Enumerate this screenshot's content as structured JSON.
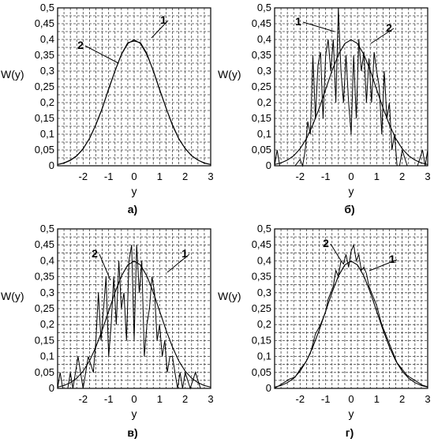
{
  "chart_data": [
    {
      "type": "line",
      "caption": "а)",
      "xlabel": "y",
      "ylabel": "W(y)",
      "xlim": [
        -3,
        3
      ],
      "ylim": [
        0,
        0.5
      ],
      "xticks": [
        "-2",
        "-1",
        "0",
        "1",
        "2",
        "3"
      ],
      "yticks": [
        "0",
        "0,05",
        "0,1",
        "0,15",
        "0,2",
        "0,25",
        "0,3",
        "0,35",
        "0,4",
        "0,45",
        "0,5"
      ],
      "grid": true,
      "annotations": [
        "1",
        "2"
      ],
      "series": [
        {
          "x": [
            -3,
            -2.75,
            -2.5,
            -2.25,
            -2,
            -1.75,
            -1.5,
            -1.25,
            -1,
            -0.75,
            -0.5,
            -0.25,
            0,
            0.25,
            0.5,
            0.75,
            1,
            1.25,
            1.5,
            1.75,
            2,
            2.25,
            2.5,
            2.75,
            3
          ],
          "y": [
            0.004,
            0.008,
            0.017,
            0.031,
            0.053,
            0.087,
            0.13,
            0.181,
            0.245,
            0.3,
            0.353,
            0.39,
            0.395,
            0.39,
            0.355,
            0.3,
            0.24,
            0.184,
            0.128,
            0.085,
            0.055,
            0.032,
            0.018,
            0.008,
            0.004
          ]
        },
        {
          "x": [
            -3,
            -2.75,
            -2.5,
            -2.25,
            -2,
            -1.75,
            -1.5,
            -1.25,
            -1,
            -0.75,
            -0.5,
            -0.25,
            0,
            0.25,
            0.5,
            0.75,
            1,
            1.25,
            1.5,
            1.75,
            2,
            2.25,
            2.5,
            2.75,
            3
          ],
          "y": [
            0.004,
            0.009,
            0.018,
            0.032,
            0.054,
            0.086,
            0.13,
            0.183,
            0.242,
            0.301,
            0.352,
            0.387,
            0.399,
            0.387,
            0.352,
            0.301,
            0.242,
            0.183,
            0.13,
            0.086,
            0.054,
            0.032,
            0.018,
            0.009,
            0.004
          ]
        }
      ]
    },
    {
      "type": "line",
      "caption": "б)",
      "xlabel": "y",
      "ylabel": "W(y)",
      "xlim": [
        -3,
        3
      ],
      "ylim": [
        0,
        0.5
      ],
      "xticks": [
        "-2",
        "-1",
        "0",
        "1",
        "2",
        "3"
      ],
      "yticks": [
        "0",
        "0,05",
        "0,1",
        "0,15",
        "0,2",
        "0,25",
        "0,3",
        "0,35",
        "0,4",
        "0,45",
        "0,5"
      ],
      "grid": true,
      "annotations": [
        "1",
        "2"
      ],
      "series": [
        {
          "x": [
            -3,
            -2.9,
            -2.8,
            -2.7,
            -2.6,
            -2.4,
            -2.2,
            -2.0,
            -1.9,
            -1.8,
            -1.7,
            -1.6,
            -1.5,
            -1.4,
            -1.3,
            -1.2,
            -1.1,
            -1.0,
            -0.9,
            -0.8,
            -0.7,
            -0.6,
            -0.5,
            -0.4,
            -0.3,
            -0.2,
            -0.1,
            0,
            0.1,
            0.2,
            0.3,
            0.4,
            0.5,
            0.6,
            0.7,
            0.8,
            0.9,
            1.0,
            1.1,
            1.2,
            1.3,
            1.4,
            1.5,
            1.6,
            1.7,
            1.8,
            1.9,
            2.0,
            2.2,
            2.4,
            2.6,
            2.8,
            2.9,
            3
          ],
          "y": [
            0,
            0.05,
            0,
            0,
            0,
            0,
            0,
            0.02,
            0,
            0.05,
            0.14,
            0.1,
            0.35,
            0.15,
            0.32,
            0.36,
            0.15,
            0.35,
            0.4,
            0.3,
            0.4,
            0.2,
            0.5,
            0.3,
            0.2,
            0.35,
            0.2,
            0.1,
            0.35,
            0.15,
            0.4,
            0.3,
            0.36,
            0.2,
            0.34,
            0.2,
            0.36,
            0.3,
            0.25,
            0.1,
            0.3,
            0.15,
            0.2,
            0.05,
            0.1,
            0,
            0,
            0.05,
            0,
            0,
            0,
            0.05,
            0,
            0.05
          ]
        },
        {
          "x": [
            -3,
            -2.75,
            -2.5,
            -2.25,
            -2,
            -1.75,
            -1.5,
            -1.25,
            -1,
            -0.75,
            -0.5,
            -0.25,
            0,
            0.25,
            0.5,
            0.75,
            1,
            1.25,
            1.5,
            1.75,
            2,
            2.25,
            2.5,
            2.75,
            3
          ],
          "y": [
            0.004,
            0.009,
            0.018,
            0.032,
            0.054,
            0.086,
            0.13,
            0.183,
            0.242,
            0.301,
            0.352,
            0.387,
            0.399,
            0.387,
            0.352,
            0.301,
            0.242,
            0.183,
            0.13,
            0.086,
            0.054,
            0.032,
            0.018,
            0.009,
            0.004
          ]
        }
      ]
    },
    {
      "type": "line",
      "caption": "в)",
      "xlabel": "y",
      "ylabel": "W(y)",
      "xlim": [
        -3,
        3
      ],
      "ylim": [
        0,
        0.5
      ],
      "xticks": [
        "-2",
        "-1",
        "0",
        "1",
        "2",
        "3"
      ],
      "yticks": [
        "0",
        "0,05",
        "0,1",
        "0,15",
        "0,2",
        "0,25",
        "0,3",
        "0,35",
        "0,4",
        "0,45",
        "0,5"
      ],
      "grid": true,
      "annotations": [
        "2",
        "1"
      ],
      "series": [
        {
          "x": [
            -3,
            -2.9,
            -2.8,
            -2.6,
            -2.5,
            -2.4,
            -2.2,
            -2.1,
            -2.0,
            -1.9,
            -1.8,
            -1.6,
            -1.5,
            -1.4,
            -1.3,
            -1.2,
            -1.1,
            -1.0,
            -0.9,
            -0.8,
            -0.7,
            -0.6,
            -0.5,
            -0.4,
            -0.3,
            -0.2,
            -0.1,
            0,
            0.1,
            0.2,
            0.3,
            0.4,
            0.5,
            0.6,
            0.7,
            0.8,
            0.9,
            1.0,
            1.1,
            1.2,
            1.3,
            1.4,
            1.5,
            1.6,
            1.7,
            1.8,
            1.9,
            2.0,
            2.2,
            2.4,
            2.6,
            2.8,
            3
          ],
          "y": [
            0,
            0.05,
            0,
            0,
            0.05,
            0,
            0.1,
            0.05,
            0,
            0.05,
            0.1,
            0.05,
            0.15,
            0.3,
            0.15,
            0.25,
            0.35,
            0.1,
            0.2,
            0.35,
            0.2,
            0.4,
            0.25,
            0.3,
            0.15,
            0.4,
            0.45,
            0.15,
            0.45,
            0.3,
            0.4,
            0.1,
            0.2,
            0.25,
            0.35,
            0.3,
            0.15,
            0.2,
            0.1,
            0.15,
            0.05,
            0.1,
            0.1,
            0.05,
            0,
            0.05,
            0,
            0.05,
            0,
            0.05,
            0,
            0,
            0
          ]
        },
        {
          "x": [
            -3,
            -2.75,
            -2.5,
            -2.25,
            -2,
            -1.75,
            -1.5,
            -1.25,
            -1,
            -0.75,
            -0.5,
            -0.25,
            0,
            0.25,
            0.5,
            0.75,
            1,
            1.25,
            1.5,
            1.75,
            2,
            2.25,
            2.5,
            2.75,
            3
          ],
          "y": [
            0.004,
            0.009,
            0.018,
            0.032,
            0.054,
            0.086,
            0.13,
            0.183,
            0.242,
            0.301,
            0.352,
            0.387,
            0.399,
            0.387,
            0.352,
            0.301,
            0.242,
            0.183,
            0.13,
            0.086,
            0.054,
            0.032,
            0.018,
            0.009,
            0.004
          ]
        }
      ]
    },
    {
      "type": "line",
      "caption": "г)",
      "xlabel": "y",
      "ylabel": "W(y)",
      "xlim": [
        -3,
        3
      ],
      "ylim": [
        0,
        0.5
      ],
      "xticks": [
        "-2",
        "-1",
        "0",
        "1",
        "2",
        "3"
      ],
      "yticks": [
        "0",
        "0,05",
        "0,1",
        "0,15",
        "0,2",
        "0,25",
        "0,3",
        "0,35",
        "0,4",
        "0,45",
        "0,5"
      ],
      "grid": true,
      "annotations": [
        "2",
        "1"
      ],
      "series": [
        {
          "x": [
            -3,
            -2.8,
            -2.6,
            -2.4,
            -2.2,
            -2.0,
            -1.8,
            -1.6,
            -1.4,
            -1.2,
            -1.0,
            -0.9,
            -0.8,
            -0.7,
            -0.6,
            -0.5,
            -0.4,
            -0.3,
            -0.2,
            -0.1,
            0,
            0.1,
            0.2,
            0.3,
            0.4,
            0.5,
            0.6,
            0.7,
            0.8,
            0.9,
            1.0,
            1.2,
            1.4,
            1.6,
            1.8,
            2.0,
            2.2,
            2.4,
            2.6,
            2.8,
            3
          ],
          "y": [
            0,
            0.01,
            0.02,
            0.03,
            0.035,
            0.06,
            0.08,
            0.11,
            0.17,
            0.2,
            0.24,
            0.28,
            0.3,
            0.32,
            0.37,
            0.35,
            0.4,
            0.39,
            0.42,
            0.38,
            0.43,
            0.45,
            0.4,
            0.42,
            0.37,
            0.38,
            0.36,
            0.32,
            0.3,
            0.28,
            0.26,
            0.2,
            0.16,
            0.12,
            0.08,
            0.06,
            0.04,
            0.03,
            0.02,
            0.01,
            0.005
          ]
        },
        {
          "x": [
            -3,
            -2.75,
            -2.5,
            -2.25,
            -2,
            -1.75,
            -1.5,
            -1.25,
            -1,
            -0.75,
            -0.5,
            -0.25,
            0,
            0.25,
            0.5,
            0.75,
            1,
            1.25,
            1.5,
            1.75,
            2,
            2.25,
            2.5,
            2.75,
            3
          ],
          "y": [
            0.004,
            0.009,
            0.018,
            0.032,
            0.054,
            0.086,
            0.13,
            0.183,
            0.242,
            0.301,
            0.352,
            0.387,
            0.399,
            0.387,
            0.352,
            0.301,
            0.242,
            0.183,
            0.13,
            0.086,
            0.054,
            0.032,
            0.018,
            0.009,
            0.004
          ]
        }
      ]
    }
  ]
}
